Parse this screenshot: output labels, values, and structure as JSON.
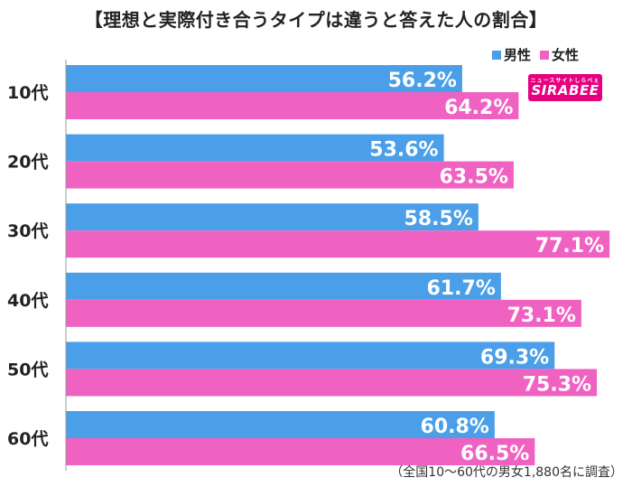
{
  "chart_data": {
    "type": "bar",
    "orientation": "horizontal",
    "title": "【理想と実際付き合うタイプは違うと答えた人の割合】",
    "categories": [
      "10代",
      "20代",
      "30代",
      "40代",
      "50代",
      "60代"
    ],
    "series": [
      {
        "name": "男性",
        "color": "#4a9fe8",
        "values": [
          56.2,
          53.6,
          58.5,
          61.7,
          69.3,
          60.8
        ]
      },
      {
        "name": "女性",
        "color": "#f062c2",
        "values": [
          64.2,
          63.5,
          77.1,
          73.1,
          75.3,
          66.5
        ]
      }
    ],
    "value_suffix": "%",
    "grid": false,
    "legend_position": "top-right",
    "footnote": "（全国10〜60代の男女1,880名に調査）"
  },
  "logo": {
    "brand": "SIRABEE",
    "tagline": "ニュースサイトしらべぇ",
    "color": "#e6007e"
  }
}
